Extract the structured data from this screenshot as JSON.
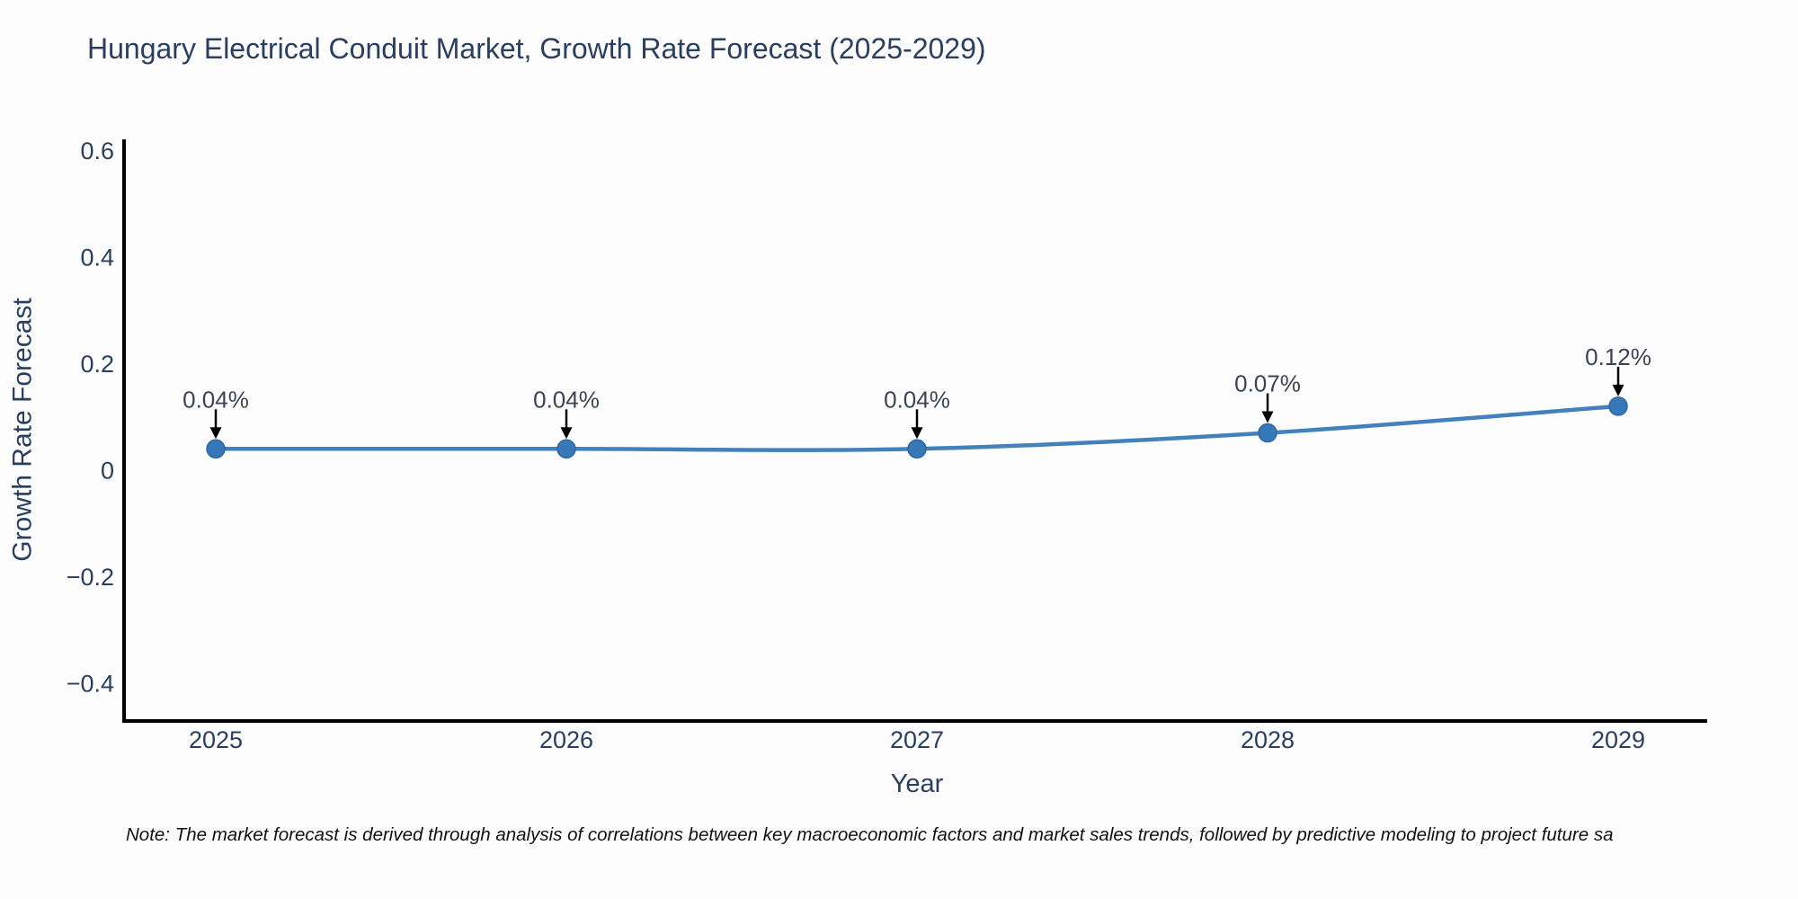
{
  "title": "Hungary Electrical Conduit Market, Growth Rate Forecast (2025-2029)",
  "note": "Note: The market forecast is derived through analysis of correlations between key macroeconomic factors and market sales trends, followed by predictive modeling to project future sa",
  "chart_data": {
    "type": "line",
    "line_shape": "spline",
    "title": "Hungary Electrical Conduit Market, Growth Rate Forecast (2025-2029)",
    "xlabel": "Year",
    "ylabel": "Growth Rate Forecast",
    "x": [
      2025,
      2026,
      2027,
      2028,
      2029
    ],
    "categories": [
      "2025",
      "2026",
      "2027",
      "2028",
      "2029"
    ],
    "series": [
      {
        "name": "Growth Rate Forecast",
        "values": [
          0.04,
          0.04,
          0.04,
          0.07,
          0.12
        ]
      }
    ],
    "point_labels": [
      "0.04%",
      "0.04%",
      "0.04%",
      "0.07%",
      "0.12%"
    ],
    "ylim": [
      -0.47,
      0.62
    ],
    "yticks": [
      0.6,
      0.4,
      0.2,
      0,
      -0.2,
      -0.4
    ],
    "ytick_labels": [
      "0.6",
      "0.4",
      "0.2",
      "0",
      "−0.2",
      "−0.4"
    ],
    "xtick_labels": [
      "2025",
      "2026",
      "2027",
      "2028",
      "2029"
    ],
    "grid": false,
    "legend": false,
    "colors": {
      "line": "#4381bc",
      "marker": "#3778b8",
      "marker_edge": "#2d66a3",
      "axis": "#000000",
      "text": "#2a3f5f",
      "annotation_text": "#3b4453",
      "annotation_arrow": "#000000"
    }
  }
}
